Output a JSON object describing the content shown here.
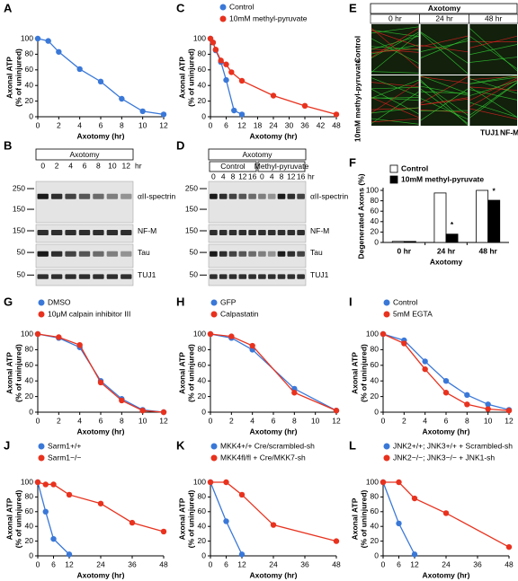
{
  "chart_data": [
    {
      "panel": "A",
      "type": "line",
      "xlabel": "Axotomy (hr)",
      "ylabel": [
        "Axonal ATP",
        "(% of uninjured)"
      ],
      "xlim": [
        0,
        12
      ],
      "xticks": [
        0,
        2,
        4,
        6,
        8,
        10,
        12
      ],
      "ylim": [
        0,
        100
      ],
      "yticks": [
        0,
        20,
        40,
        60,
        80,
        100
      ],
      "series": [
        {
          "color": "#3a78d8",
          "x": [
            0,
            1,
            2,
            4,
            6,
            8,
            10,
            12
          ],
          "values": [
            100,
            97,
            83,
            61,
            45,
            23,
            7,
            3
          ]
        }
      ]
    },
    {
      "panel": "C",
      "type": "line",
      "xlabel": "Axotomy (hr)",
      "ylabel": [
        "Axonal ATP",
        "(% of uninjured)"
      ],
      "xlim": [
        0,
        48
      ],
      "xticks": [
        0,
        6,
        12,
        18,
        24,
        30,
        36,
        42,
        48
      ],
      "ylim": [
        0,
        100
      ],
      "yticks": [
        0,
        20,
        40,
        60,
        80,
        100
      ],
      "series": [
        {
          "name": "Control",
          "color": "#3a78d8",
          "x": [
            0,
            1,
            2,
            4,
            6,
            9,
            12
          ],
          "values": [
            100,
            95,
            85,
            70,
            47,
            8,
            3
          ]
        },
        {
          "name": "10mM methyl-pyruvate",
          "color": "#e8321e",
          "x": [
            0,
            1,
            2,
            4,
            6,
            8,
            12,
            24,
            36,
            48
          ],
          "values": [
            100,
            95,
            86,
            72,
            67,
            57,
            46,
            27,
            14,
            3
          ]
        }
      ]
    },
    {
      "panel": "F",
      "type": "bar",
      "xlabel": "Axotomy",
      "ylabel": [
        "Degenerated Axons (%)"
      ],
      "categories": [
        "0 hr",
        "24 hr",
        "48 hr"
      ],
      "ylim": [
        0,
        100
      ],
      "yticks": [
        0,
        20,
        40,
        60,
        80,
        100
      ],
      "series": [
        {
          "name": "Control",
          "color": "#ffffff",
          "values": [
            2,
            95,
            100
          ]
        },
        {
          "name": "10mM methyl-pyruvate",
          "color": "#000000",
          "values": [
            2,
            16,
            81
          ]
        }
      ],
      "annotations": [
        {
          "text": "*",
          "x": "24 hr"
        },
        {
          "text": "*",
          "x": "48 hr"
        }
      ]
    },
    {
      "panel": "G",
      "type": "line",
      "xlabel": "Axotomy (hr)",
      "ylabel": [
        "Axonal ATP",
        "(% of uninjured)"
      ],
      "xlim": [
        0,
        12
      ],
      "xticks": [
        0,
        2,
        4,
        6,
        8,
        10,
        12
      ],
      "ylim": [
        0,
        100
      ],
      "yticks": [
        0,
        20,
        40,
        60,
        80,
        100
      ],
      "series": [
        {
          "name": "DMSO",
          "color": "#3a78d8",
          "x": [
            0,
            2,
            4,
            6,
            8,
            10,
            12
          ],
          "values": [
            100,
            95,
            83,
            40,
            17,
            3,
            0
          ]
        },
        {
          "name": "10μM calpain inhibitor III",
          "color": "#e8321e",
          "x": [
            0,
            2,
            4,
            6,
            8,
            10,
            12
          ],
          "values": [
            100,
            96,
            86,
            38,
            15,
            2,
            0
          ]
        }
      ]
    },
    {
      "panel": "H",
      "type": "line",
      "xlabel": "Axotomy (hr)",
      "ylabel": [
        "Axonal ATP",
        "(% of uninjured)"
      ],
      "xlim": [
        0,
        12
      ],
      "xticks": [
        0,
        2,
        4,
        6,
        8,
        10,
        12
      ],
      "ylim": [
        0,
        100
      ],
      "yticks": [
        0,
        20,
        40,
        60,
        80,
        100
      ],
      "series": [
        {
          "name": "GFP",
          "color": "#3a78d8",
          "x": [
            0,
            2,
            4,
            8,
            12
          ],
          "values": [
            100,
            95,
            80,
            30,
            2
          ]
        },
        {
          "name": "Calpastatin",
          "color": "#e8321e",
          "x": [
            0,
            2,
            4,
            8,
            12
          ],
          "values": [
            100,
            97,
            85,
            25,
            2
          ]
        }
      ]
    },
    {
      "panel": "I",
      "type": "line",
      "xlabel": "Axotomy (hr)",
      "ylabel": [
        "Axonal ATP",
        "(% of uninjured)"
      ],
      "xlim": [
        0,
        12
      ],
      "xticks": [
        0,
        2,
        4,
        6,
        8,
        10,
        12
      ],
      "ylim": [
        0,
        100
      ],
      "yticks": [
        0,
        20,
        40,
        60,
        80,
        100
      ],
      "series": [
        {
          "name": "Control",
          "color": "#3a78d8",
          "x": [
            0,
            2,
            4,
            6,
            8,
            10,
            12
          ],
          "values": [
            100,
            92,
            65,
            40,
            22,
            10,
            3
          ]
        },
        {
          "name": "5mM EGTA",
          "color": "#e8321e",
          "x": [
            0,
            2,
            4,
            6,
            8,
            10,
            12
          ],
          "values": [
            100,
            88,
            55,
            25,
            10,
            4,
            2
          ]
        }
      ]
    },
    {
      "panel": "J",
      "type": "line",
      "xlabel": "Axotomy (hr)",
      "ylabel": [
        "Axonal ATP",
        "(% of uninjured)"
      ],
      "xlim": [
        0,
        48
      ],
      "xticks": [
        0,
        6,
        12,
        24,
        36,
        48
      ],
      "ylim": [
        0,
        100
      ],
      "yticks": [
        0,
        20,
        40,
        60,
        80,
        100
      ],
      "series": [
        {
          "name": "Sarm1+/+",
          "color": "#3a78d8",
          "x": [
            0,
            3,
            6,
            12
          ],
          "values": [
            100,
            60,
            23,
            2
          ]
        },
        {
          "name": "Sarm1−/−",
          "color": "#e8321e",
          "x": [
            0,
            3,
            6,
            12,
            24,
            36,
            48
          ],
          "values": [
            100,
            97,
            97,
            83,
            71,
            45,
            33
          ]
        }
      ]
    },
    {
      "panel": "K",
      "type": "line",
      "xlabel": "Axotomy (hr)",
      "ylabel": [
        "Axonal ATP",
        "(% of uninjured)"
      ],
      "xlim": [
        0,
        48
      ],
      "xticks": [
        0,
        6,
        12,
        24,
        36,
        48
      ],
      "ylim": [
        0,
        100
      ],
      "yticks": [
        0,
        20,
        40,
        60,
        80,
        100
      ],
      "series": [
        {
          "name": "MKK4+/+ Cre/scrambled-sh",
          "color": "#3a78d8",
          "x": [
            0,
            6,
            12
          ],
          "values": [
            100,
            47,
            2
          ]
        },
        {
          "name": "MKK4fl/fl + Cre/MKK7-sh",
          "color": "#e8321e",
          "x": [
            0,
            6,
            12,
            24,
            48
          ],
          "values": [
            100,
            100,
            83,
            42,
            20
          ]
        }
      ]
    },
    {
      "panel": "L",
      "type": "line",
      "xlabel": "Axotomy (hr)",
      "ylabel": [
        "Axonal ATP",
        "(% of uninjured)"
      ],
      "xlim": [
        0,
        48
      ],
      "xticks": [
        0,
        6,
        12,
        24,
        36,
        48
      ],
      "ylim": [
        0,
        100
      ],
      "yticks": [
        0,
        20,
        40,
        60,
        80,
        100
      ],
      "series": [
        {
          "name": "JNK2+/+; JNK3+/+ + Scrambled-sh",
          "color": "#3a78d8",
          "x": [
            0,
            6,
            12
          ],
          "values": [
            100,
            44,
            2
          ]
        },
        {
          "name": "JNK2−/−; JNK3−/− + JNK1-sh",
          "color": "#e8321e",
          "x": [
            0,
            6,
            12,
            24,
            48
          ],
          "values": [
            100,
            100,
            78,
            58,
            12
          ]
        }
      ]
    }
  ],
  "blots": [
    {
      "panel": "B",
      "header": "Axotomy",
      "lanes": [
        "0",
        "2",
        "4",
        "6",
        "8",
        "10",
        "12"
      ],
      "unit": "hr",
      "rows": [
        {
          "label": "αII-spectrin",
          "markers": [
            "250",
            "150"
          ]
        },
        {
          "label": "NF-M",
          "markers": [
            "150"
          ]
        },
        {
          "label": "Tau",
          "markers": [
            "50"
          ]
        },
        {
          "label": "TUJ1",
          "markers": [
            "50"
          ]
        }
      ]
    },
    {
      "panel": "D",
      "header": "Axotomy",
      "groups": [
        {
          "name": "Control",
          "lanes": [
            "0",
            "4",
            "8",
            "12",
            "16"
          ]
        },
        {
          "name": "Methyl-pyruvate",
          "lanes": [
            "0",
            "4",
            "8",
            "12",
            "16"
          ]
        }
      ],
      "unit": "hr",
      "rows": [
        {
          "label": "αII-spectrin",
          "markers": [
            "250",
            "150"
          ]
        },
        {
          "label": "NF-M",
          "markers": [
            "150"
          ]
        },
        {
          "label": "Tau",
          "markers": [
            "50"
          ]
        },
        {
          "label": "TUJ1",
          "markers": [
            "50"
          ]
        }
      ]
    }
  ],
  "micrograph": {
    "panel": "E",
    "header": "Axotomy",
    "columns": [
      "0 hr",
      "24 hr",
      "48 hr"
    ],
    "rows": [
      "Control",
      "10mM methyl-pyruvate"
    ],
    "stains": [
      {
        "name": "TUJ1",
        "color": "#33cc33"
      },
      {
        "name": "NF-M",
        "color": "#e82020"
      }
    ]
  }
}
